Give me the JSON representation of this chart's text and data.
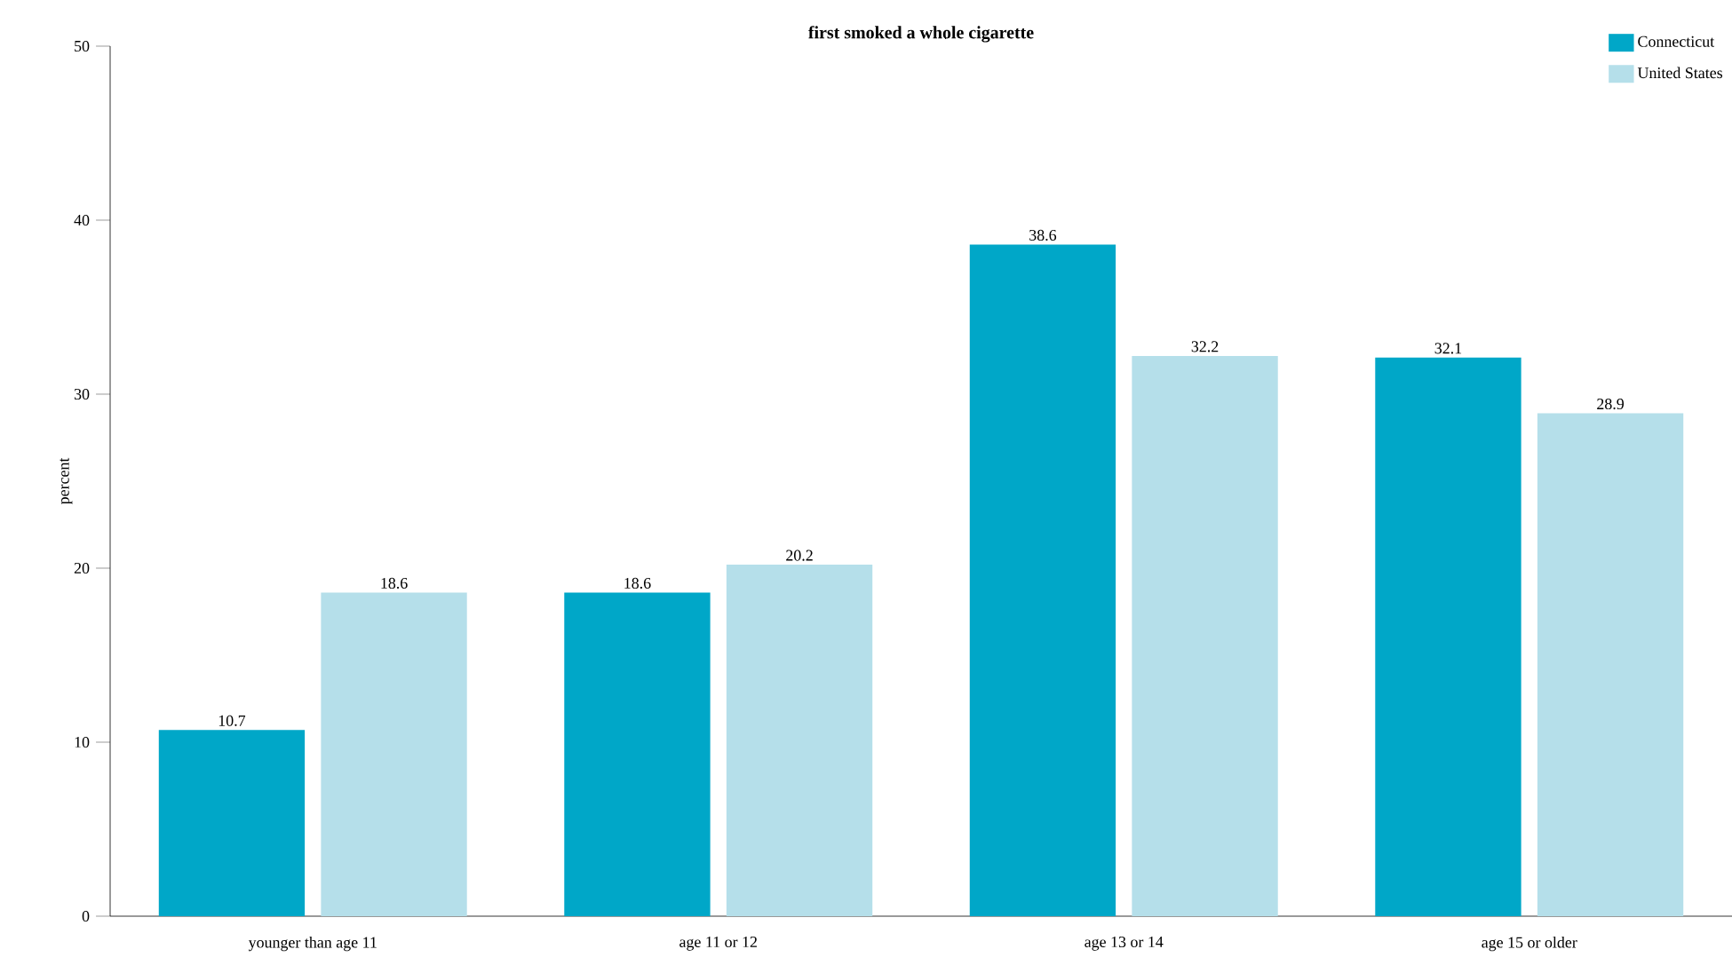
{
  "chart_data": {
    "type": "bar",
    "title": "first smoked a whole cigarette",
    "ylabel": "percent",
    "categories": [
      "younger than age 11",
      "age 11 or 12",
      "age 13 or 14",
      "age 15 or older"
    ],
    "series": [
      {
        "name": "Connecticut",
        "color": "#00a7c8",
        "values": [
          10.7,
          18.6,
          38.6,
          32.1
        ]
      },
      {
        "name": "United States",
        "color": "#b5dfea",
        "values": [
          18.6,
          20.2,
          32.2,
          28.9
        ]
      }
    ],
    "ylim": [
      0,
      50
    ],
    "yticks": [
      0,
      10,
      20,
      30,
      40,
      50
    ],
    "grid": false,
    "legend": "top right",
    "data_labels": true
  }
}
